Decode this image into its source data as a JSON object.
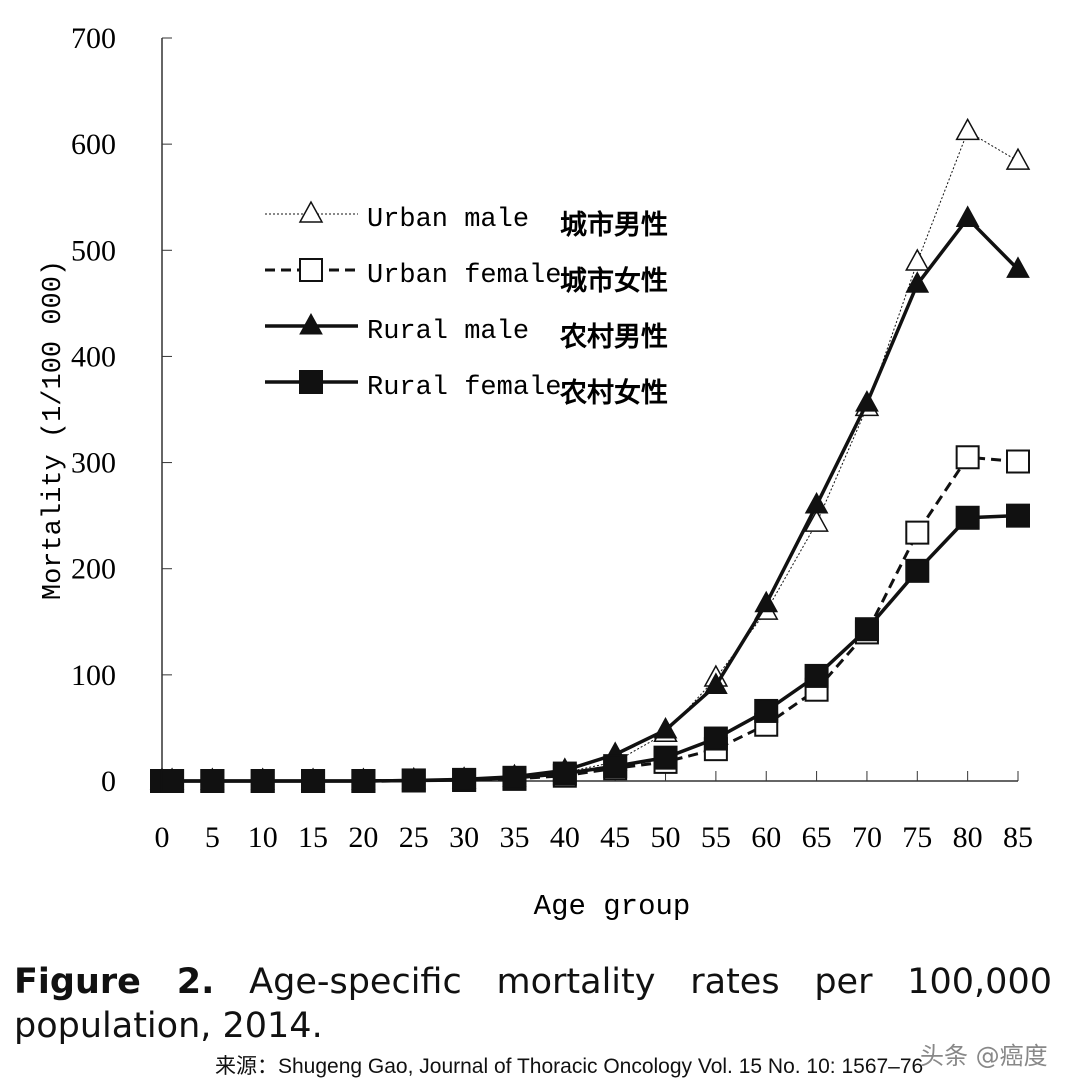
{
  "chart_data": {
    "type": "line",
    "xlabel": "Age group",
    "ylabel": "Mortality (1/100 000)",
    "ylim": [
      0,
      700
    ],
    "yticks": [
      0,
      100,
      200,
      300,
      400,
      500,
      600,
      700
    ],
    "xticks": [
      0,
      5,
      10,
      15,
      20,
      25,
      30,
      35,
      40,
      45,
      50,
      55,
      60,
      65,
      70,
      75,
      80,
      85
    ],
    "x": [
      0,
      1,
      5,
      10,
      15,
      20,
      25,
      30,
      35,
      40,
      45,
      50,
      55,
      60,
      65,
      70,
      75,
      80,
      85
    ],
    "legend_position": "top-left",
    "grid": false,
    "series": [
      {
        "name": "Urban male",
        "name_zh": "城市男性",
        "marker": "open-triangle",
        "line": "dotted",
        "values": [
          0,
          0,
          0,
          0,
          0,
          0,
          0.5,
          1,
          3,
          8,
          18,
          45,
          97,
          160,
          243,
          352,
          489,
          612,
          584
        ]
      },
      {
        "name": "Urban female",
        "name_zh": "城市女性",
        "marker": "open-square",
        "line": "dashed",
        "values": [
          0,
          0,
          0,
          0,
          0,
          0,
          0.5,
          1,
          2,
          5,
          12,
          18,
          30,
          53,
          86,
          140,
          234,
          305,
          301
        ]
      },
      {
        "name": "Rural male",
        "name_zh": "农村男性",
        "marker": "filled-triangle",
        "line": "solid",
        "values": [
          0,
          0,
          0,
          0,
          0,
          0,
          0.5,
          1.5,
          4,
          10,
          25,
          48,
          90,
          167,
          260,
          356,
          468,
          530,
          482
        ]
      },
      {
        "name": "Rural female",
        "name_zh": "农村女性",
        "marker": "filled-square",
        "line": "solid",
        "values": [
          0,
          0,
          0,
          0,
          0,
          0,
          0.5,
          1,
          3,
          7,
          14,
          22,
          40,
          66,
          99,
          143,
          198,
          248,
          250
        ]
      }
    ]
  },
  "caption": {
    "label": "Figure 2.",
    "text": "Age-specific mortality rates per 100,000 population, 2014."
  },
  "source": "来源：Shugeng Gao, Journal of Thoracic Oncology Vol. 15 No. 10: 1567–76",
  "watermark": "头条 @癌度"
}
